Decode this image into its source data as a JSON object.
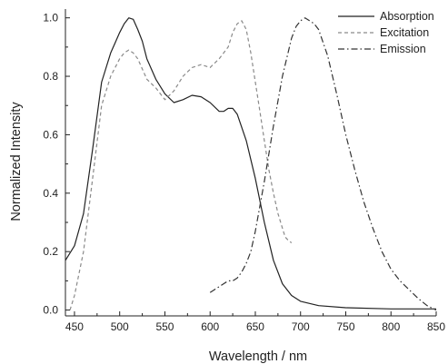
{
  "chart_data": {
    "type": "line",
    "xlabel": "Wavelength / nm",
    "ylabel": "Normalized Intensity",
    "xlim": [
      440,
      850
    ],
    "ylim": [
      -0.02,
      1.03
    ],
    "x_ticks": [
      450,
      500,
      550,
      600,
      650,
      700,
      750,
      800,
      850
    ],
    "y_ticks": [
      0.0,
      0.2,
      0.4,
      0.6,
      0.8,
      1.0
    ],
    "x_tick_labels": [
      "450",
      "500",
      "550",
      "600",
      "650",
      "700",
      "750",
      "800",
      "850"
    ],
    "y_tick_labels": [
      "0.0",
      "0.2",
      "0.4",
      "0.6",
      "0.8",
      "1.0"
    ],
    "legend_position": "top-right",
    "grid": false,
    "series": [
      {
        "name": "Absorption",
        "color": "#222222",
        "dash": "solid",
        "x": [
          440,
          450,
          460,
          470,
          480,
          490,
          500,
          505,
          510,
          515,
          520,
          525,
          530,
          540,
          550,
          560,
          570,
          580,
          590,
          600,
          610,
          615,
          620,
          625,
          630,
          640,
          650,
          660,
          670,
          680,
          690,
          700,
          720,
          750,
          800,
          850
        ],
        "y": [
          0.17,
          0.22,
          0.33,
          0.55,
          0.78,
          0.88,
          0.95,
          0.98,
          1.0,
          0.995,
          0.96,
          0.92,
          0.86,
          0.79,
          0.74,
          0.71,
          0.72,
          0.735,
          0.73,
          0.71,
          0.68,
          0.68,
          0.69,
          0.69,
          0.67,
          0.58,
          0.45,
          0.3,
          0.17,
          0.09,
          0.05,
          0.03,
          0.015,
          0.008,
          0.004,
          0.004
        ]
      },
      {
        "name": "Excitation",
        "color": "#8a8a8a",
        "dash": "dashed",
        "x": [
          445,
          450,
          460,
          470,
          480,
          490,
          500,
          505,
          510,
          515,
          520,
          530,
          540,
          550,
          560,
          570,
          580,
          590,
          600,
          610,
          620,
          625,
          630,
          635,
          640,
          645,
          650,
          655,
          660,
          665,
          670,
          675,
          680,
          683,
          686,
          690
        ],
        "y": [
          0.0,
          0.05,
          0.2,
          0.45,
          0.7,
          0.8,
          0.86,
          0.88,
          0.89,
          0.88,
          0.86,
          0.79,
          0.76,
          0.72,
          0.75,
          0.8,
          0.83,
          0.84,
          0.83,
          0.86,
          0.9,
          0.95,
          0.98,
          0.99,
          0.96,
          0.88,
          0.78,
          0.68,
          0.58,
          0.48,
          0.4,
          0.33,
          0.28,
          0.25,
          0.24,
          0.23
        ]
      },
      {
        "name": "Emission",
        "color": "#333333",
        "dash": "dashdot",
        "x": [
          600,
          605,
          610,
          615,
          620,
          625,
          630,
          635,
          640,
          645,
          650,
          660,
          670,
          680,
          690,
          695,
          700,
          705,
          710,
          715,
          720,
          730,
          740,
          750,
          760,
          770,
          780,
          790,
          800,
          810,
          820,
          830,
          840,
          850
        ],
        "y": [
          0.06,
          0.07,
          0.08,
          0.09,
          0.1,
          0.1,
          0.11,
          0.13,
          0.16,
          0.2,
          0.27,
          0.44,
          0.63,
          0.8,
          0.93,
          0.97,
          0.99,
          1.0,
          0.99,
          0.98,
          0.96,
          0.87,
          0.74,
          0.6,
          0.48,
          0.37,
          0.28,
          0.2,
          0.14,
          0.1,
          0.07,
          0.04,
          0.015,
          0.0
        ]
      }
    ]
  }
}
